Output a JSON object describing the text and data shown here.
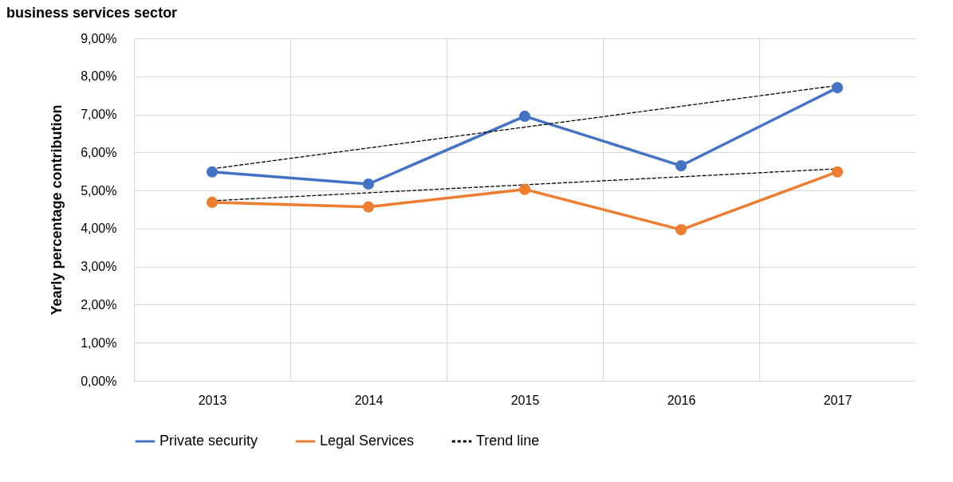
{
  "chart_data": {
    "type": "line",
    "title": "business services sector",
    "ylabel": "Yearly percentage contribution",
    "categories": [
      "2013",
      "2014",
      "2015",
      "2016",
      "2017"
    ],
    "series": [
      {
        "name": "Private security",
        "color": "#4472c4",
        "values": [
          5.49,
          5.17,
          6.95,
          5.65,
          7.7
        ],
        "marker": "circle",
        "line_style": "solid"
      },
      {
        "name": "Legal Services",
        "color": "#ed7d31",
        "values": [
          4.69,
          4.57,
          5.03,
          3.97,
          5.49
        ],
        "marker": "circle",
        "line_style": "solid"
      },
      {
        "name": "Trend line",
        "color": "#000000",
        "values": [
          5.57,
          null,
          null,
          null,
          7.76
        ],
        "marker": "none",
        "line_style": "dashed"
      },
      {
        "color": "#000000",
        "values": [
          4.73,
          null,
          null,
          null,
          5.57
        ],
        "marker": "none",
        "line_style": "dashed"
      }
    ],
    "ylim": [
      0,
      9
    ],
    "yticks": [
      {
        "value": 0,
        "label": "0,00%"
      },
      {
        "value": 1,
        "label": "1,00%"
      },
      {
        "value": 2,
        "label": "2,00%"
      },
      {
        "value": 3,
        "label": "3,00%"
      },
      {
        "value": 4,
        "label": "4,00%"
      },
      {
        "value": 5,
        "label": "5,00%"
      },
      {
        "value": 6,
        "label": "6,00%"
      },
      {
        "value": 7,
        "label": "7,00%"
      },
      {
        "value": 8,
        "label": "8,00%"
      },
      {
        "value": 9,
        "label": "9,00%"
      }
    ],
    "grid": true,
    "legend": "bottom"
  }
}
